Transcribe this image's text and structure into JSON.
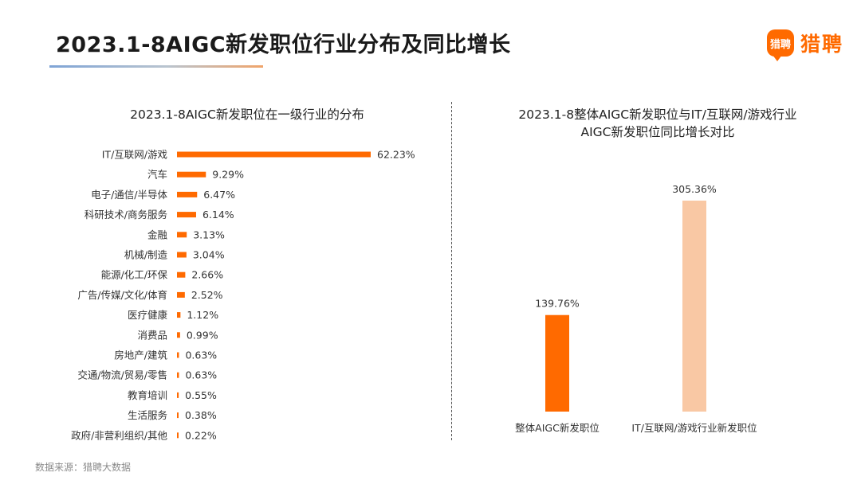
{
  "header": {
    "title": "2023.1-8AIGC新发职位行业分布及同比增长",
    "brand_logo_text": "猎聘",
    "brand_name": "猎聘"
  },
  "colors": {
    "accent": "#ff6a00",
    "light_accent": "#f9c8a4"
  },
  "source": "数据来源：猎聘大数据",
  "chart_data": [
    {
      "type": "bar",
      "orientation": "horizontal",
      "title": "2023.1-8AIGC新发职位在一级行业的分布",
      "categories": [
        "IT/互联网/游戏",
        "汽车",
        "电子/通信/半导体",
        "科研技术/商务服务",
        "金融",
        "机械/制造",
        "能源/化工/环保",
        "广告/传媒/文化/体育",
        "医疗健康",
        "消费品",
        "房地产/建筑",
        "交通/物流/贸易/零售",
        "教育培训",
        "生活服务",
        "政府/非营利组织/其他"
      ],
      "values": [
        62.23,
        9.29,
        6.47,
        6.14,
        3.13,
        3.04,
        2.66,
        2.52,
        1.12,
        0.99,
        0.63,
        0.63,
        0.55,
        0.38,
        0.22
      ],
      "labels": [
        "62.23%",
        "9.29%",
        "6.47%",
        "6.14%",
        "3.13%",
        "3.04%",
        "2.66%",
        "2.52%",
        "1.12%",
        "0.99%",
        "0.63%",
        "0.63%",
        "0.55%",
        "0.38%",
        "0.22%"
      ],
      "unit": "%",
      "xlim": [
        0,
        62.23
      ],
      "grid": false,
      "legend": "none"
    },
    {
      "type": "bar",
      "orientation": "vertical",
      "title_lines": [
        "2023.1-8整体AIGC新发职位与IT/互联网/游戏行业",
        "AIGC新发职位同比增长对比"
      ],
      "categories": [
        "整体AIGC新发职位",
        "IT/互联网/游戏行业新发职位"
      ],
      "values": [
        139.76,
        305.36
      ],
      "labels": [
        "139.76%",
        "305.36%"
      ],
      "unit": "%",
      "ylim": [
        0,
        305.36
      ],
      "grid": false,
      "legend": "none"
    }
  ]
}
